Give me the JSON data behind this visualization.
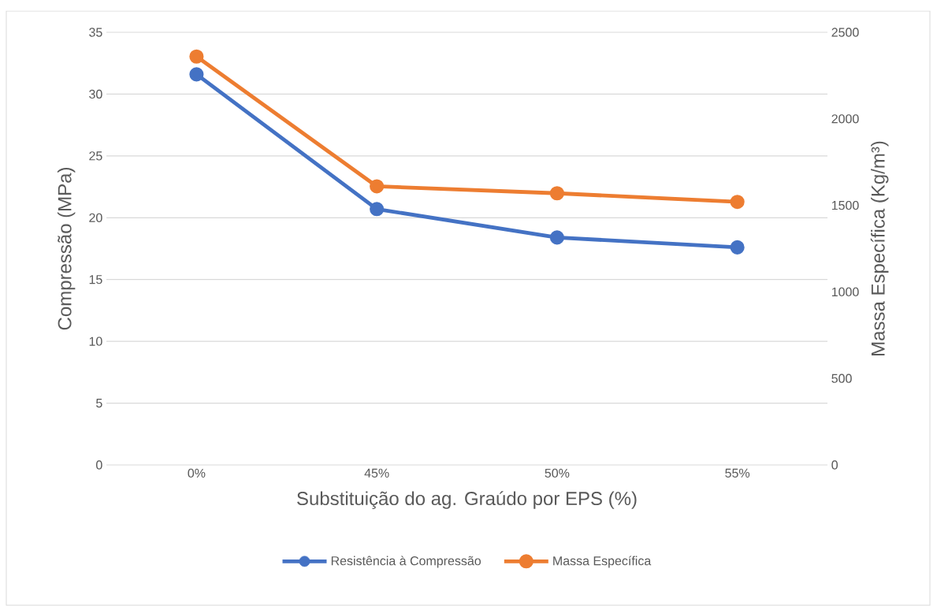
{
  "chart_data": {
    "type": "line",
    "xlabel": "Substituição do ag. Graúdo por EPS (%)",
    "ylabel": "Compressão (MPa)",
    "y2label": "Massa Específica (Kg/m³)",
    "categories": [
      "0%",
      "45%",
      "50%",
      "55%"
    ],
    "series": [
      {
        "name": "Resistência à Compressão",
        "color": "#4472c4",
        "values": [
          31.6,
          20.7,
          18.4,
          17.6
        ]
      },
      {
        "name": "Massa Específica",
        "color": "#ed7d31",
        "axis": "y2",
        "values": [
          2360,
          1610,
          1570,
          1520
        ]
      }
    ],
    "ylim": [
      0,
      35
    ],
    "yticks": [
      0,
      5,
      10,
      15,
      20,
      25,
      30,
      35
    ],
    "y2lim": [
      0,
      2500
    ],
    "y2ticks": [
      0,
      500,
      1000,
      1500,
      2000,
      2500
    ],
    "grid": "y",
    "legend": "bottom",
    "marker": "circle",
    "line_style": "solid"
  }
}
